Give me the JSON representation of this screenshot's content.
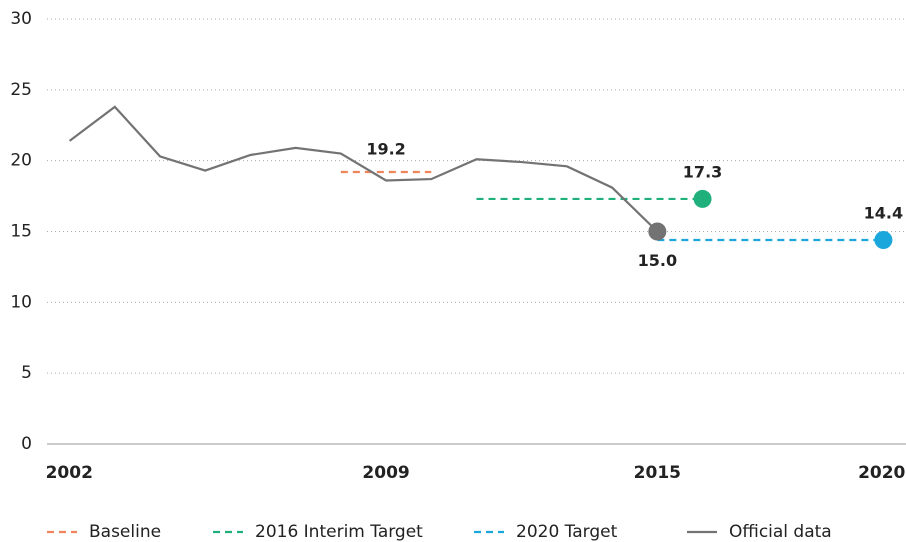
{
  "chart_data": {
    "type": "line",
    "xlim": [
      2001.5,
      2020.5
    ],
    "xticks": [
      2002,
      2009,
      2015,
      2020
    ],
    "ylim": [
      0,
      30
    ],
    "yticks": [
      0,
      5,
      10,
      15,
      20,
      25,
      30
    ],
    "grid": true,
    "series": [
      {
        "name": "Baseline",
        "color": "#f0845a",
        "style": "dashed",
        "x": [
          2008,
          2010
        ],
        "values": [
          19.2,
          19.2
        ]
      },
      {
        "name": "2016 Interim Target",
        "color": "#1fb07c",
        "style": "dashed",
        "x": [
          2011,
          2016
        ],
        "values": [
          17.3,
          17.3
        ]
      },
      {
        "name": "2020 Target",
        "color": "#1ba6dc",
        "style": "dashed",
        "x": [
          2015,
          2020
        ],
        "values": [
          14.4,
          14.4
        ]
      },
      {
        "name": "Official data",
        "color": "#737373",
        "style": "solid",
        "x": [
          2002,
          2003,
          2004,
          2005,
          2006,
          2007,
          2008,
          2009,
          2010,
          2011,
          2012,
          2013,
          2014,
          2015
        ],
        "values": [
          21.4,
          23.8,
          20.3,
          19.3,
          20.4,
          20.9,
          20.5,
          18.6,
          18.7,
          20.1,
          19.9,
          19.6,
          18.1,
          15
        ],
        "value_labels": [
          null,
          null,
          null,
          null,
          null,
          null,
          null,
          null,
          null,
          null,
          null,
          null,
          null,
          "15.0"
        ]
      }
    ]
  }
}
